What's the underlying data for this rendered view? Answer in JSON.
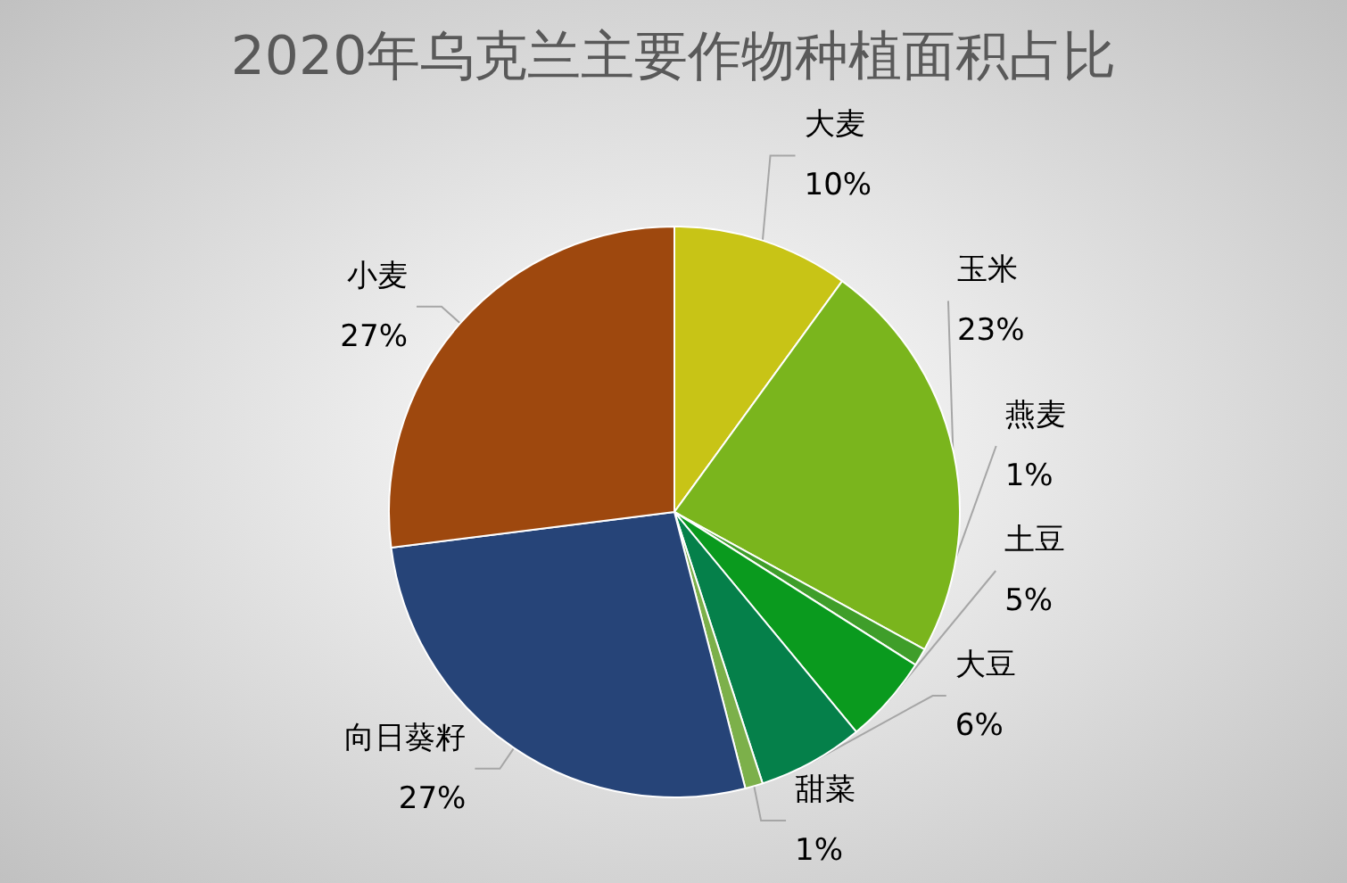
{
  "chart_data": {
    "type": "pie",
    "title": "2020年乌克兰主要作物种植面积占比",
    "categories": [
      "大麦",
      "玉米",
      "燕麦",
      "土豆",
      "大豆",
      "甜菜",
      "向日葵籽",
      "小麦"
    ],
    "values": [
      10,
      23,
      1,
      5,
      6,
      1,
      27,
      27
    ],
    "colors": [
      "#c8c416",
      "#7ab51d",
      "#3f9e2a",
      "#0a9a1e",
      "#05804a",
      "#7cb04a",
      "#264478",
      "#9e480e"
    ],
    "value_labels": [
      "10%",
      "23%",
      "1%",
      "5%",
      "6%",
      "1%",
      "27%",
      "27%"
    ],
    "legend": false
  }
}
